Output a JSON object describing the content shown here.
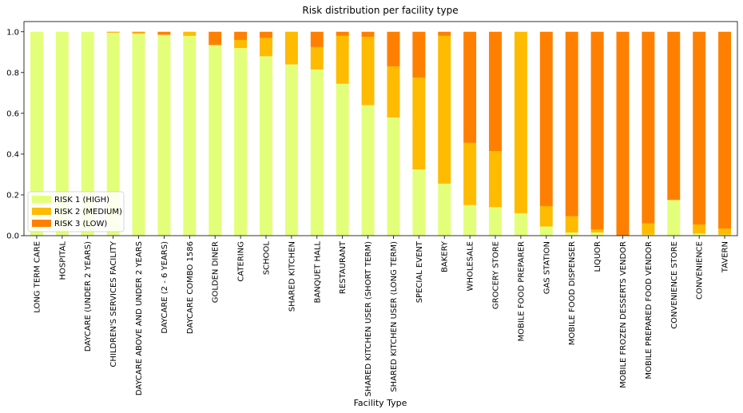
{
  "chart_data": {
    "type": "bar",
    "stacked": true,
    "title": "Risk distribution per facility type",
    "xlabel": "Facility Type",
    "ylabel": "",
    "ylim": [
      0,
      1.05
    ],
    "yticks": [
      "0.0",
      "0.2",
      "0.4",
      "0.6",
      "0.8",
      "1.0"
    ],
    "legend_position": "lower-left",
    "grid": false,
    "categories": [
      "LONG TERM CARE",
      "HOSPITAL",
      "DAYCARE (UNDER 2 YEARS)",
      "CHILDREN'S SERVICES FACILITY",
      "DAYCARE ABOVE AND UNDER 2 YEARS",
      "DAYCARE (2 - 6 YEARS)",
      "DAYCARE COMBO 1586",
      "GOLDEN DINER",
      "CATERING",
      "SCHOOL",
      "SHARED KITCHEN",
      "BANQUET HALL",
      "RESTAURANT",
      "SHARED KITCHEN USER (SHORT TERM)",
      "SHARED KITCHEN USER (LONG TERM)",
      "SPECIAL EVENT",
      "BAKERY",
      "WHOLESALE",
      "GROCERY STORE",
      "MOBILE FOOD PREPARER",
      "GAS STATION",
      "MOBILE FOOD DISPENSER",
      "LIQUOR",
      "MOBILE FROZEN DESSERTS VENDOR",
      "MOBILE PREPARED FOOD VENDOR",
      "CONVENIENCE STORE",
      "CONVENIENCE",
      "TAVERN"
    ],
    "series": [
      {
        "name": "RISK 1 (HIGH)",
        "color": "#e3ff7a",
        "values": [
          1.0,
          1.0,
          1.0,
          0.995,
          0.99,
          0.985,
          0.98,
          0.935,
          0.92,
          0.88,
          0.84,
          0.815,
          0.745,
          0.64,
          0.58,
          0.325,
          0.255,
          0.15,
          0.14,
          0.11,
          0.045,
          0.015,
          0.015,
          0.0,
          0.005,
          0.175,
          0.01,
          0.005
        ]
      },
      {
        "name": "RISK 2 (MEDIUM)",
        "color": "#ffbb00",
        "values": [
          0.0,
          0.0,
          0.0,
          0.003,
          0.007,
          0.0,
          0.02,
          0.0,
          0.04,
          0.09,
          0.16,
          0.11,
          0.235,
          0.335,
          0.25,
          0.45,
          0.725,
          0.305,
          0.275,
          0.89,
          0.1,
          0.08,
          0.015,
          0.0,
          0.055,
          0.0,
          0.045,
          0.03
        ]
      },
      {
        "name": "RISK 3 (LOW)",
        "color": "#ff8000",
        "values": [
          0.0,
          0.0,
          0.0,
          0.002,
          0.003,
          0.015,
          0.0,
          0.065,
          0.04,
          0.03,
          0.0,
          0.075,
          0.02,
          0.025,
          0.17,
          0.225,
          0.02,
          0.545,
          0.585,
          0.0,
          0.855,
          0.905,
          0.97,
          1.0,
          0.94,
          0.825,
          0.945,
          0.965
        ]
      }
    ]
  }
}
